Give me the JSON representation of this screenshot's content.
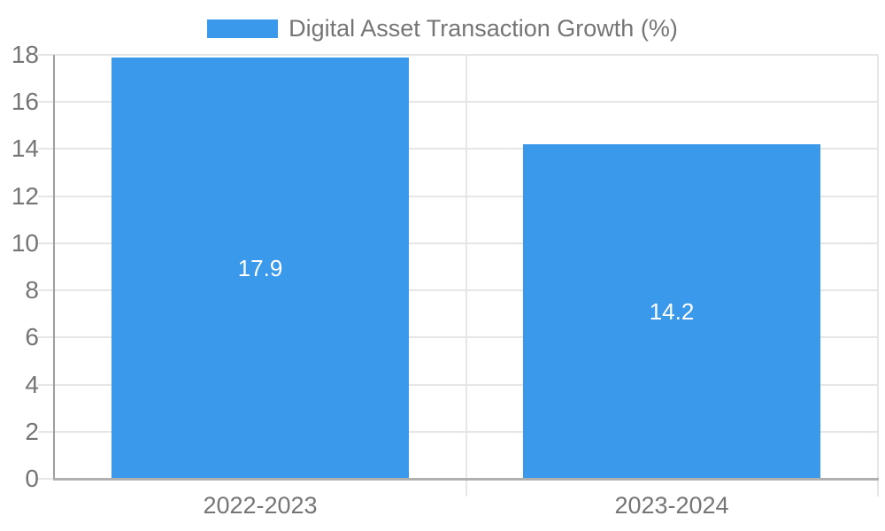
{
  "chart_data": {
    "type": "bar",
    "title": "",
    "legend": {
      "label": "Digital Asset Transaction Growth (%)",
      "position": "top"
    },
    "categories": [
      "2022-2023",
      "2023-2024"
    ],
    "series": [
      {
        "name": "Digital Asset Transaction Growth (%)",
        "values": [
          17.9,
          14.2
        ]
      }
    ],
    "value_labels": [
      "17.9",
      "14.2"
    ],
    "xlabel": "",
    "ylabel": "",
    "ylim": [
      0,
      18
    ],
    "yticks": [
      0,
      2,
      4,
      6,
      8,
      10,
      12,
      14,
      16,
      18
    ],
    "grid": true,
    "colors": {
      "bar": "#3b99ec",
      "grid": "#e6e6e6",
      "axis_y": "#9e9e9e",
      "axis_x": "#b0b0b0",
      "text": "#757575",
      "value_label": "#ffffff",
      "background": "#ffffff"
    }
  }
}
